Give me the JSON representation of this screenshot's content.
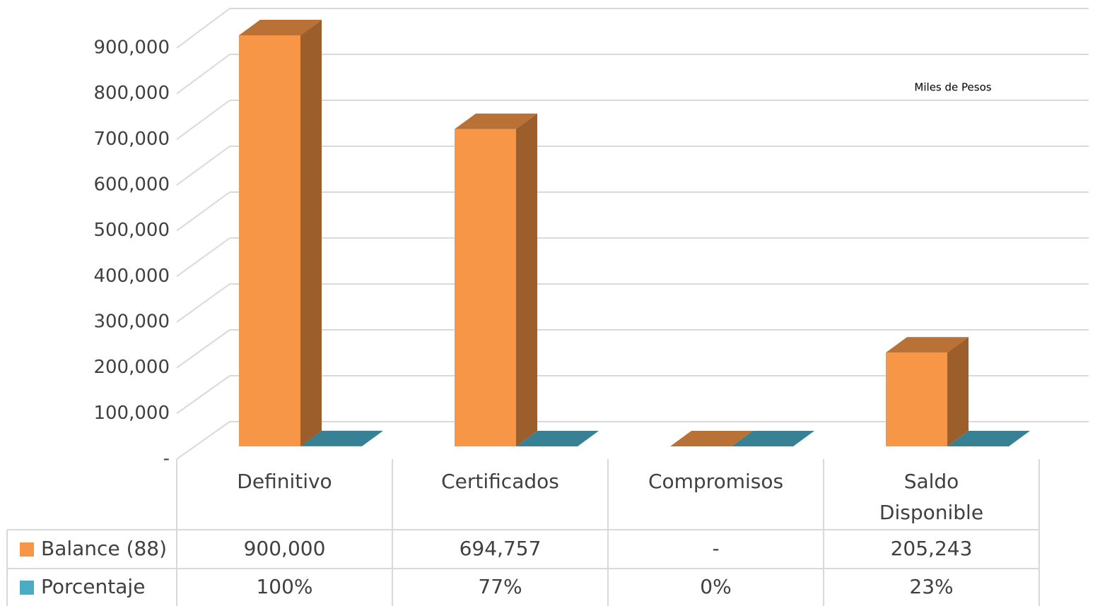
{
  "chart_data": {
    "type": "bar3d",
    "annotation": "Miles de Pesos",
    "categories": [
      "Definitivo",
      "Certificados",
      "Compromisos",
      "Saldo Disponible"
    ],
    "series": [
      {
        "name": "Balance (88)",
        "color": "#f79646",
        "values": [
          900000,
          694757,
          0,
          205243
        ],
        "value_labels": [
          "900,000",
          "694,757",
          "-",
          "205,243"
        ]
      },
      {
        "name": "Porcentaje",
        "color": "#4bacc6",
        "values": [
          100,
          77,
          0,
          23
        ],
        "value_labels": [
          "100%",
          "77%",
          "0%",
          "23%"
        ]
      }
    ],
    "ylim": [
      0,
      900000
    ],
    "yticks": [
      {
        "value": 0,
        "label": "-"
      },
      {
        "value": 100000,
        "label": "100,000"
      },
      {
        "value": 200000,
        "label": "200,000"
      },
      {
        "value": 300000,
        "label": "300,000"
      },
      {
        "value": 400000,
        "label": "400,000"
      },
      {
        "value": 500000,
        "label": "500,000"
      },
      {
        "value": 600000,
        "label": "600,000"
      },
      {
        "value": 700000,
        "label": "700,000"
      },
      {
        "value": 800000,
        "label": "800,000"
      },
      {
        "value": 900000,
        "label": "900,000"
      }
    ],
    "grid": true,
    "legend": "table"
  }
}
